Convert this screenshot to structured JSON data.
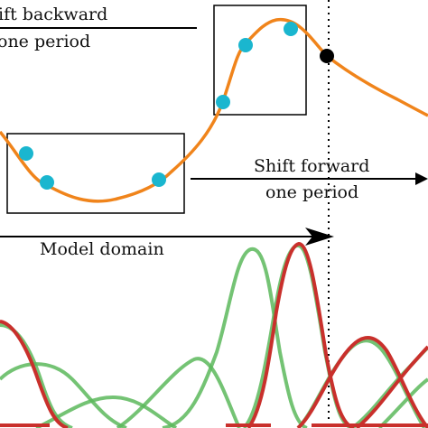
{
  "labels": {
    "shift_backward_line1": "ift backward",
    "shift_backward_line2": "one period",
    "shift_forward_line1": "Shift forward",
    "shift_forward_line2": "one period",
    "model_domain": "Model domain"
  },
  "colors": {
    "curve": "#f0841b",
    "sample_point": "#1ab6cf",
    "boundary_point": "#000000",
    "basis_green": "#5cb85c",
    "basis_red": "#c9302c",
    "frame": "#000000"
  }
}
